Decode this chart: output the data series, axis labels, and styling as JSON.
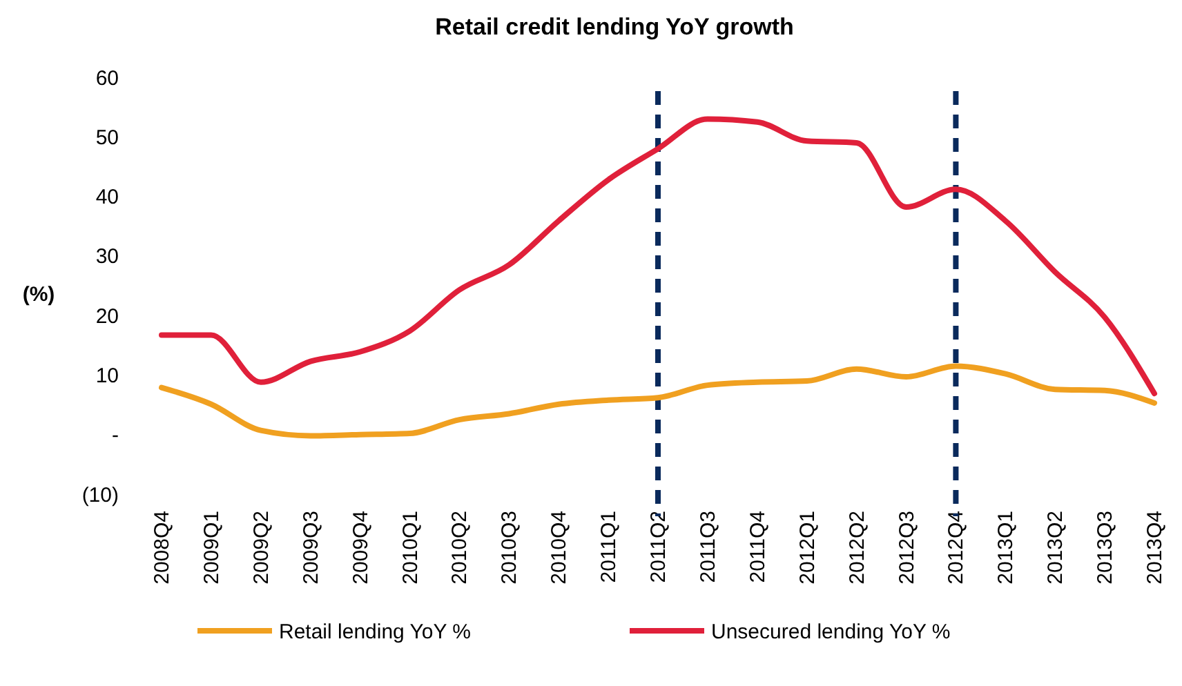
{
  "chart_data": {
    "type": "line",
    "title": "Retail credit lending YoY growth",
    "ylabel": "(%)",
    "categories": [
      "2008Q4",
      "2009Q1",
      "2009Q2",
      "2009Q3",
      "2009Q4",
      "2010Q1",
      "2010Q2",
      "2010Q3",
      "2010Q4",
      "2011Q1",
      "2011Q2",
      "2011Q3",
      "2011Q4",
      "2012Q1",
      "2012Q2",
      "2012Q3",
      "2012Q4",
      "2013Q1",
      "2013Q2",
      "2013Q3",
      "2013Q4"
    ],
    "series": [
      {
        "name": "Retail lending YoY %",
        "color": "#f0a020",
        "values": [
          7.9,
          5.1,
          0.7,
          -0.2,
          0,
          0.2,
          2.5,
          3.5,
          5.1,
          5.8,
          6.2,
          8.3,
          8.8,
          9,
          11,
          9.7,
          11.5,
          10.2,
          7.6,
          7.4,
          5.3
        ]
      },
      {
        "name": "Unsecured lending YoY %",
        "color": "#e0203a",
        "values": [
          16.7,
          16.7,
          8.8,
          12.3,
          13.9,
          17.4,
          24.3,
          28.5,
          35.9,
          42.8,
          48,
          53,
          52.5,
          49.3,
          49,
          38.2,
          41.2,
          35.9,
          27.3,
          19.7,
          6.9
        ]
      }
    ],
    "ylim": [
      -10,
      60
    ],
    "yticks": [
      {
        "value": -10,
        "label": "(10)"
      },
      {
        "value": 0,
        "label": "-"
      },
      10,
      20,
      30,
      40,
      50,
      60
    ],
    "ref_lines": [
      {
        "axis": "x",
        "value": "2011Q2",
        "color": "#0a2a5c",
        "line_style": "dashed"
      },
      {
        "axis": "x",
        "value": "2012Q4",
        "color": "#0a2a5c",
        "line_style": "dashed"
      }
    ],
    "legend": "bottom",
    "line_style": "solid",
    "marker": "none",
    "grid": false
  }
}
